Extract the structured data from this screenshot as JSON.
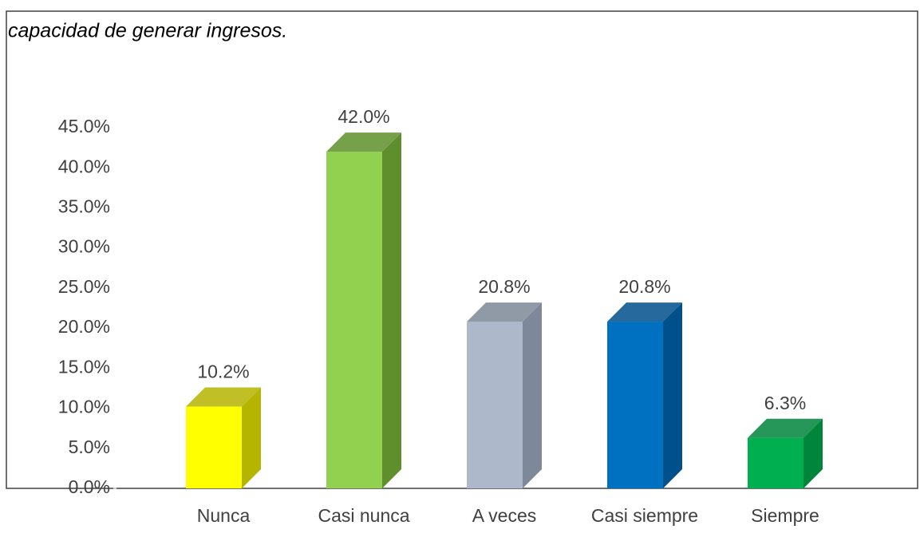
{
  "chart_data": {
    "type": "bar3d",
    "title": "capacidad de generar ingresos.",
    "categories": [
      "Nunca",
      "Casi nunca",
      "A veces",
      "Casi siempre",
      "Siempre"
    ],
    "values": [
      10.2,
      42.0,
      20.8,
      20.8,
      6.3
    ],
    "value_labels": [
      "10.2%",
      "42.0%",
      "20.8%",
      "20.8%",
      "6.3%"
    ],
    "colors": [
      "#ffff00",
      "#92d050",
      "#adb9ca",
      "#0070c0",
      "#00b050"
    ],
    "side_colors": [
      "#b5b500",
      "#5f8f2c",
      "#7d8898",
      "#00508c",
      "#00853c"
    ],
    "ylim": [
      0,
      45
    ],
    "yticks": [
      {
        "value": 0,
        "label": "0.0%"
      },
      {
        "value": 5,
        "label": "5.0%"
      },
      {
        "value": 10,
        "label": "10.0%"
      },
      {
        "value": 15,
        "label": "15.0%"
      },
      {
        "value": 20,
        "label": "20.0%"
      },
      {
        "value": 25,
        "label": "25.0%"
      },
      {
        "value": 30,
        "label": "30.0%"
      },
      {
        "value": 35,
        "label": "35.0%"
      },
      {
        "value": 40,
        "label": "40.0%"
      },
      {
        "value": 45,
        "label": "45.0%"
      }
    ],
    "grid": false
  }
}
